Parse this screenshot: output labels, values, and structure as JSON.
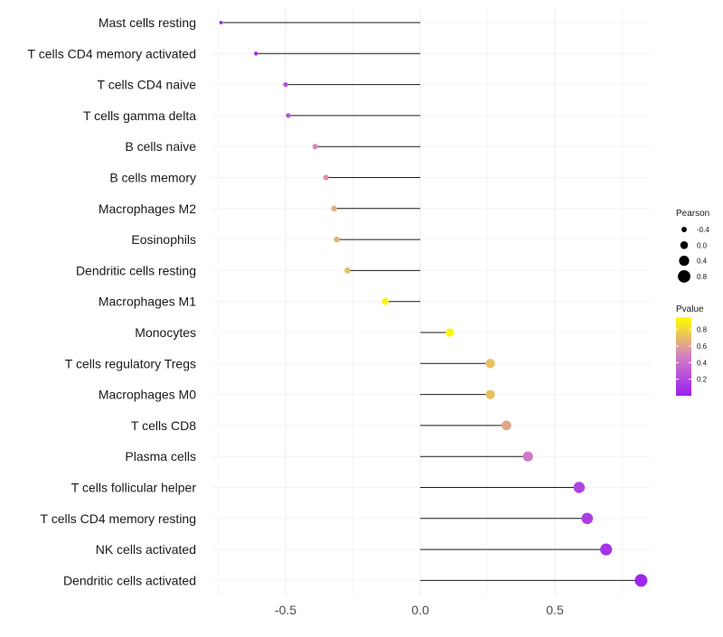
{
  "chart_data": {
    "type": "lollipop",
    "title": "",
    "xlabel": "",
    "ylabel": "",
    "xlim": [
      -0.75,
      0.82
    ],
    "x_ticks": [
      -0.5,
      0.0,
      0.5
    ],
    "x_tick_labels": [
      "-0.5",
      "0.0",
      "0.5"
    ],
    "grid": true,
    "categories": [
      "Mast cells resting",
      "T cells CD4 memory activated",
      "T cells CD4 naive",
      "T cells gamma delta",
      "B cells naive",
      "B cells memory",
      "Macrophages M2",
      "Eosinophils",
      "Dendritic cells resting",
      "Macrophages M1",
      "Monocytes",
      "T cells regulatory  Tregs ",
      "Macrophages M0",
      "T cells CD8",
      "Plasma cells",
      "T cells follicular helper",
      "T cells CD4 memory resting",
      "NK cells activated",
      "Dendritic cells activated"
    ],
    "pearson": [
      -0.74,
      -0.61,
      -0.5,
      -0.49,
      -0.39,
      -0.35,
      -0.32,
      -0.31,
      -0.27,
      -0.13,
      0.11,
      0.26,
      0.26,
      0.32,
      0.4,
      0.59,
      0.62,
      0.69,
      0.82
    ],
    "pvalue": [
      0.01,
      0.1,
      0.25,
      0.27,
      0.5,
      0.55,
      0.65,
      0.66,
      0.7,
      0.9,
      0.92,
      0.72,
      0.72,
      0.62,
      0.45,
      0.18,
      0.16,
      0.09,
      0.04
    ],
    "legend_placement": "right",
    "size_legend": {
      "title": "Pearson",
      "values": [
        -0.4,
        0.0,
        0.4,
        0.8
      ],
      "labels": [
        "-0.4",
        "0.0",
        "0.4",
        "0.8"
      ]
    },
    "color_legend": {
      "title": "Pvalue",
      "labels": [
        "0.8",
        "0.6",
        "0.4",
        "0.2"
      ],
      "values": [
        0.8,
        0.6,
        0.4,
        0.2
      ],
      "range": [
        0.0,
        0.95
      ],
      "low_color": "#9a1ff0",
      "mid_color": "#d27fc4",
      "high_color": "#ffff00"
    }
  }
}
